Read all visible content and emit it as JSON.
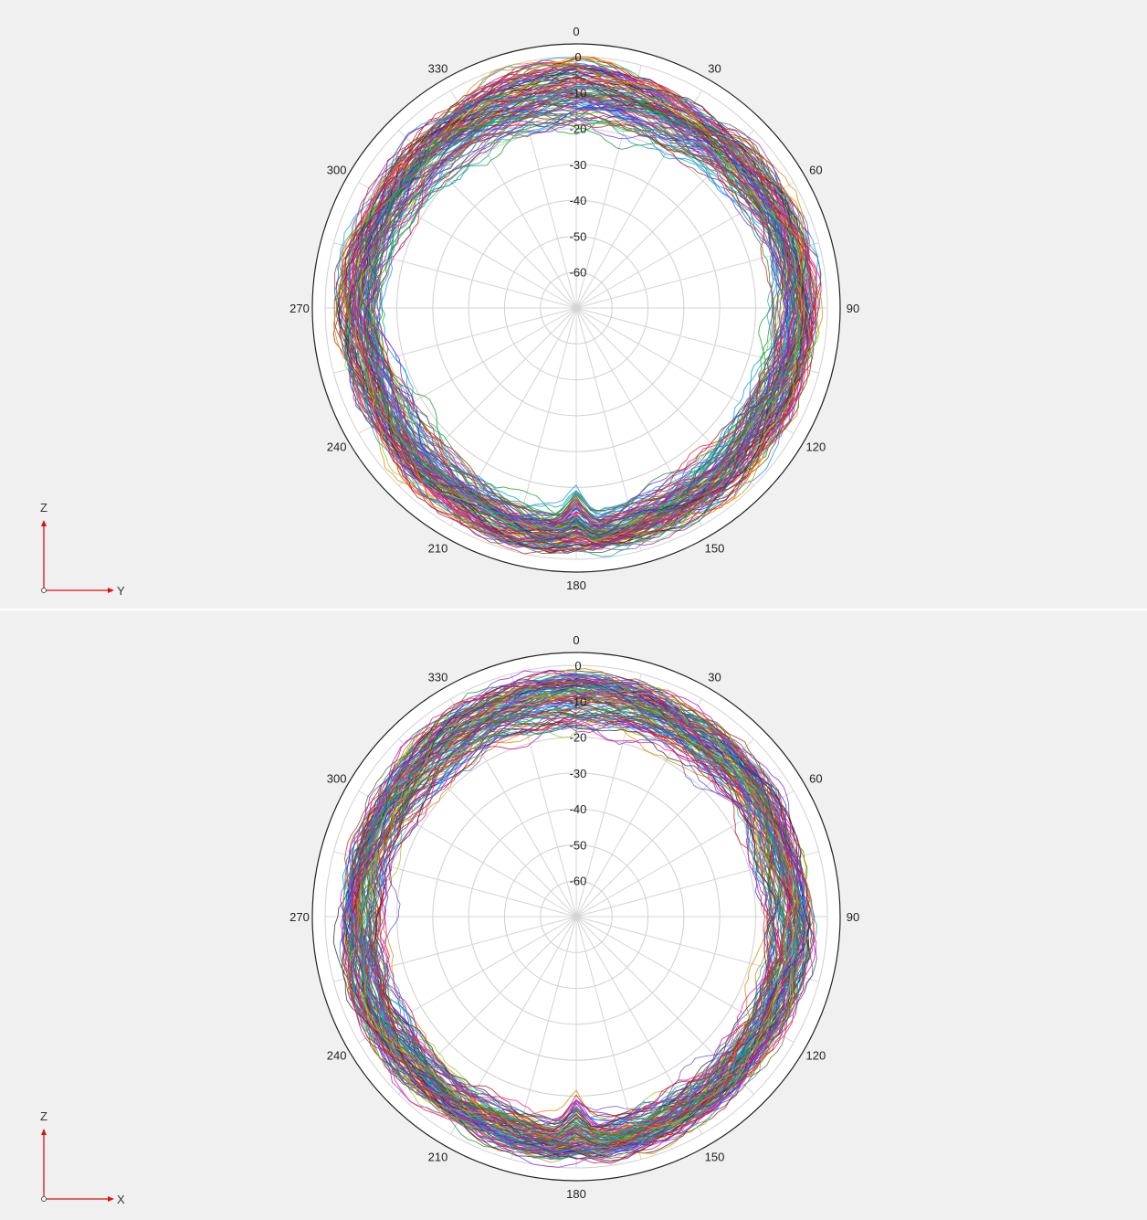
{
  "chart_data": [
    {
      "type": "polar-line",
      "plane": "YZ",
      "angle_ticks": [
        "0",
        "30",
        "60",
        "90",
        "120",
        "150",
        "180",
        "210",
        "240",
        "270",
        "300",
        "330"
      ],
      "radial_ticks": [
        "0",
        "-10",
        "-20",
        "-30",
        "-40",
        "-50",
        "-60"
      ],
      "rlim": [
        -70,
        0
      ],
      "grid": true,
      "legend": "none",
      "coord_axes": {
        "vertical": "Z",
        "horizontal": "Y"
      },
      "series_count_estimate": 120,
      "envelope_db": {
        "angles": [
          0,
          30,
          60,
          90,
          120,
          150,
          165,
          175,
          180,
          185,
          195,
          210,
          240,
          270,
          300,
          330
        ],
        "outer": [
          -2,
          -5,
          -5,
          -4,
          -5,
          -4,
          -3,
          -3,
          -3,
          -3,
          -3,
          -4,
          -5,
          -5,
          -6,
          -5
        ],
        "inner": [
          -21,
          -20,
          -16,
          -14,
          -17,
          -16,
          -14,
          -12,
          -20,
          -13,
          -14,
          -16,
          -18,
          -16,
          -18,
          -20
        ]
      },
      "colors": [
        "#1f3fd1",
        "#d12a2a",
        "#1a9e2a",
        "#8a2be2",
        "#e08a00",
        "#0aa3b5",
        "#c71585",
        "#556b2f",
        "#1e90ff",
        "#8b4513",
        "#2f2f2f",
        "#b22222",
        "#6a5acd",
        "#20b2aa",
        "#9acd32",
        "#ff1493"
      ]
    },
    {
      "type": "polar-line",
      "plane": "XZ",
      "angle_ticks": [
        "0",
        "30",
        "60",
        "90",
        "120",
        "150",
        "180",
        "210",
        "240",
        "270",
        "300",
        "330"
      ],
      "radial_ticks": [
        "0",
        "-10",
        "-20",
        "-30",
        "-40",
        "-50",
        "-60"
      ],
      "rlim": [
        -70,
        0
      ],
      "grid": true,
      "legend": "none",
      "coord_axes": {
        "vertical": "Z",
        "horizontal": "X"
      },
      "series_count_estimate": 120,
      "envelope_db": {
        "angles": [
          0,
          30,
          60,
          75,
          90,
          120,
          150,
          165,
          175,
          180,
          185,
          195,
          210,
          240,
          270,
          300,
          330
        ],
        "outer": [
          -3,
          -5,
          -6,
          -7,
          -6,
          -6,
          -5,
          -4,
          -4,
          -4,
          -4,
          -4,
          -5,
          -5,
          -6,
          -6,
          -5
        ],
        "inner": [
          -20,
          -18,
          -17,
          -20,
          -18,
          -16,
          -15,
          -14,
          -14,
          -21,
          -13,
          -14,
          -15,
          -16,
          -17,
          -18,
          -19
        ]
      },
      "colors": [
        "#1f3fd1",
        "#d12a2a",
        "#1a9e2a",
        "#8a2be2",
        "#e08a00",
        "#0aa3b5",
        "#c71585",
        "#556b2f",
        "#1e90ff",
        "#8b4513",
        "#2f2f2f",
        "#b22222",
        "#6a5acd",
        "#20b2aa",
        "#9acd32",
        "#ff1493"
      ]
    }
  ]
}
